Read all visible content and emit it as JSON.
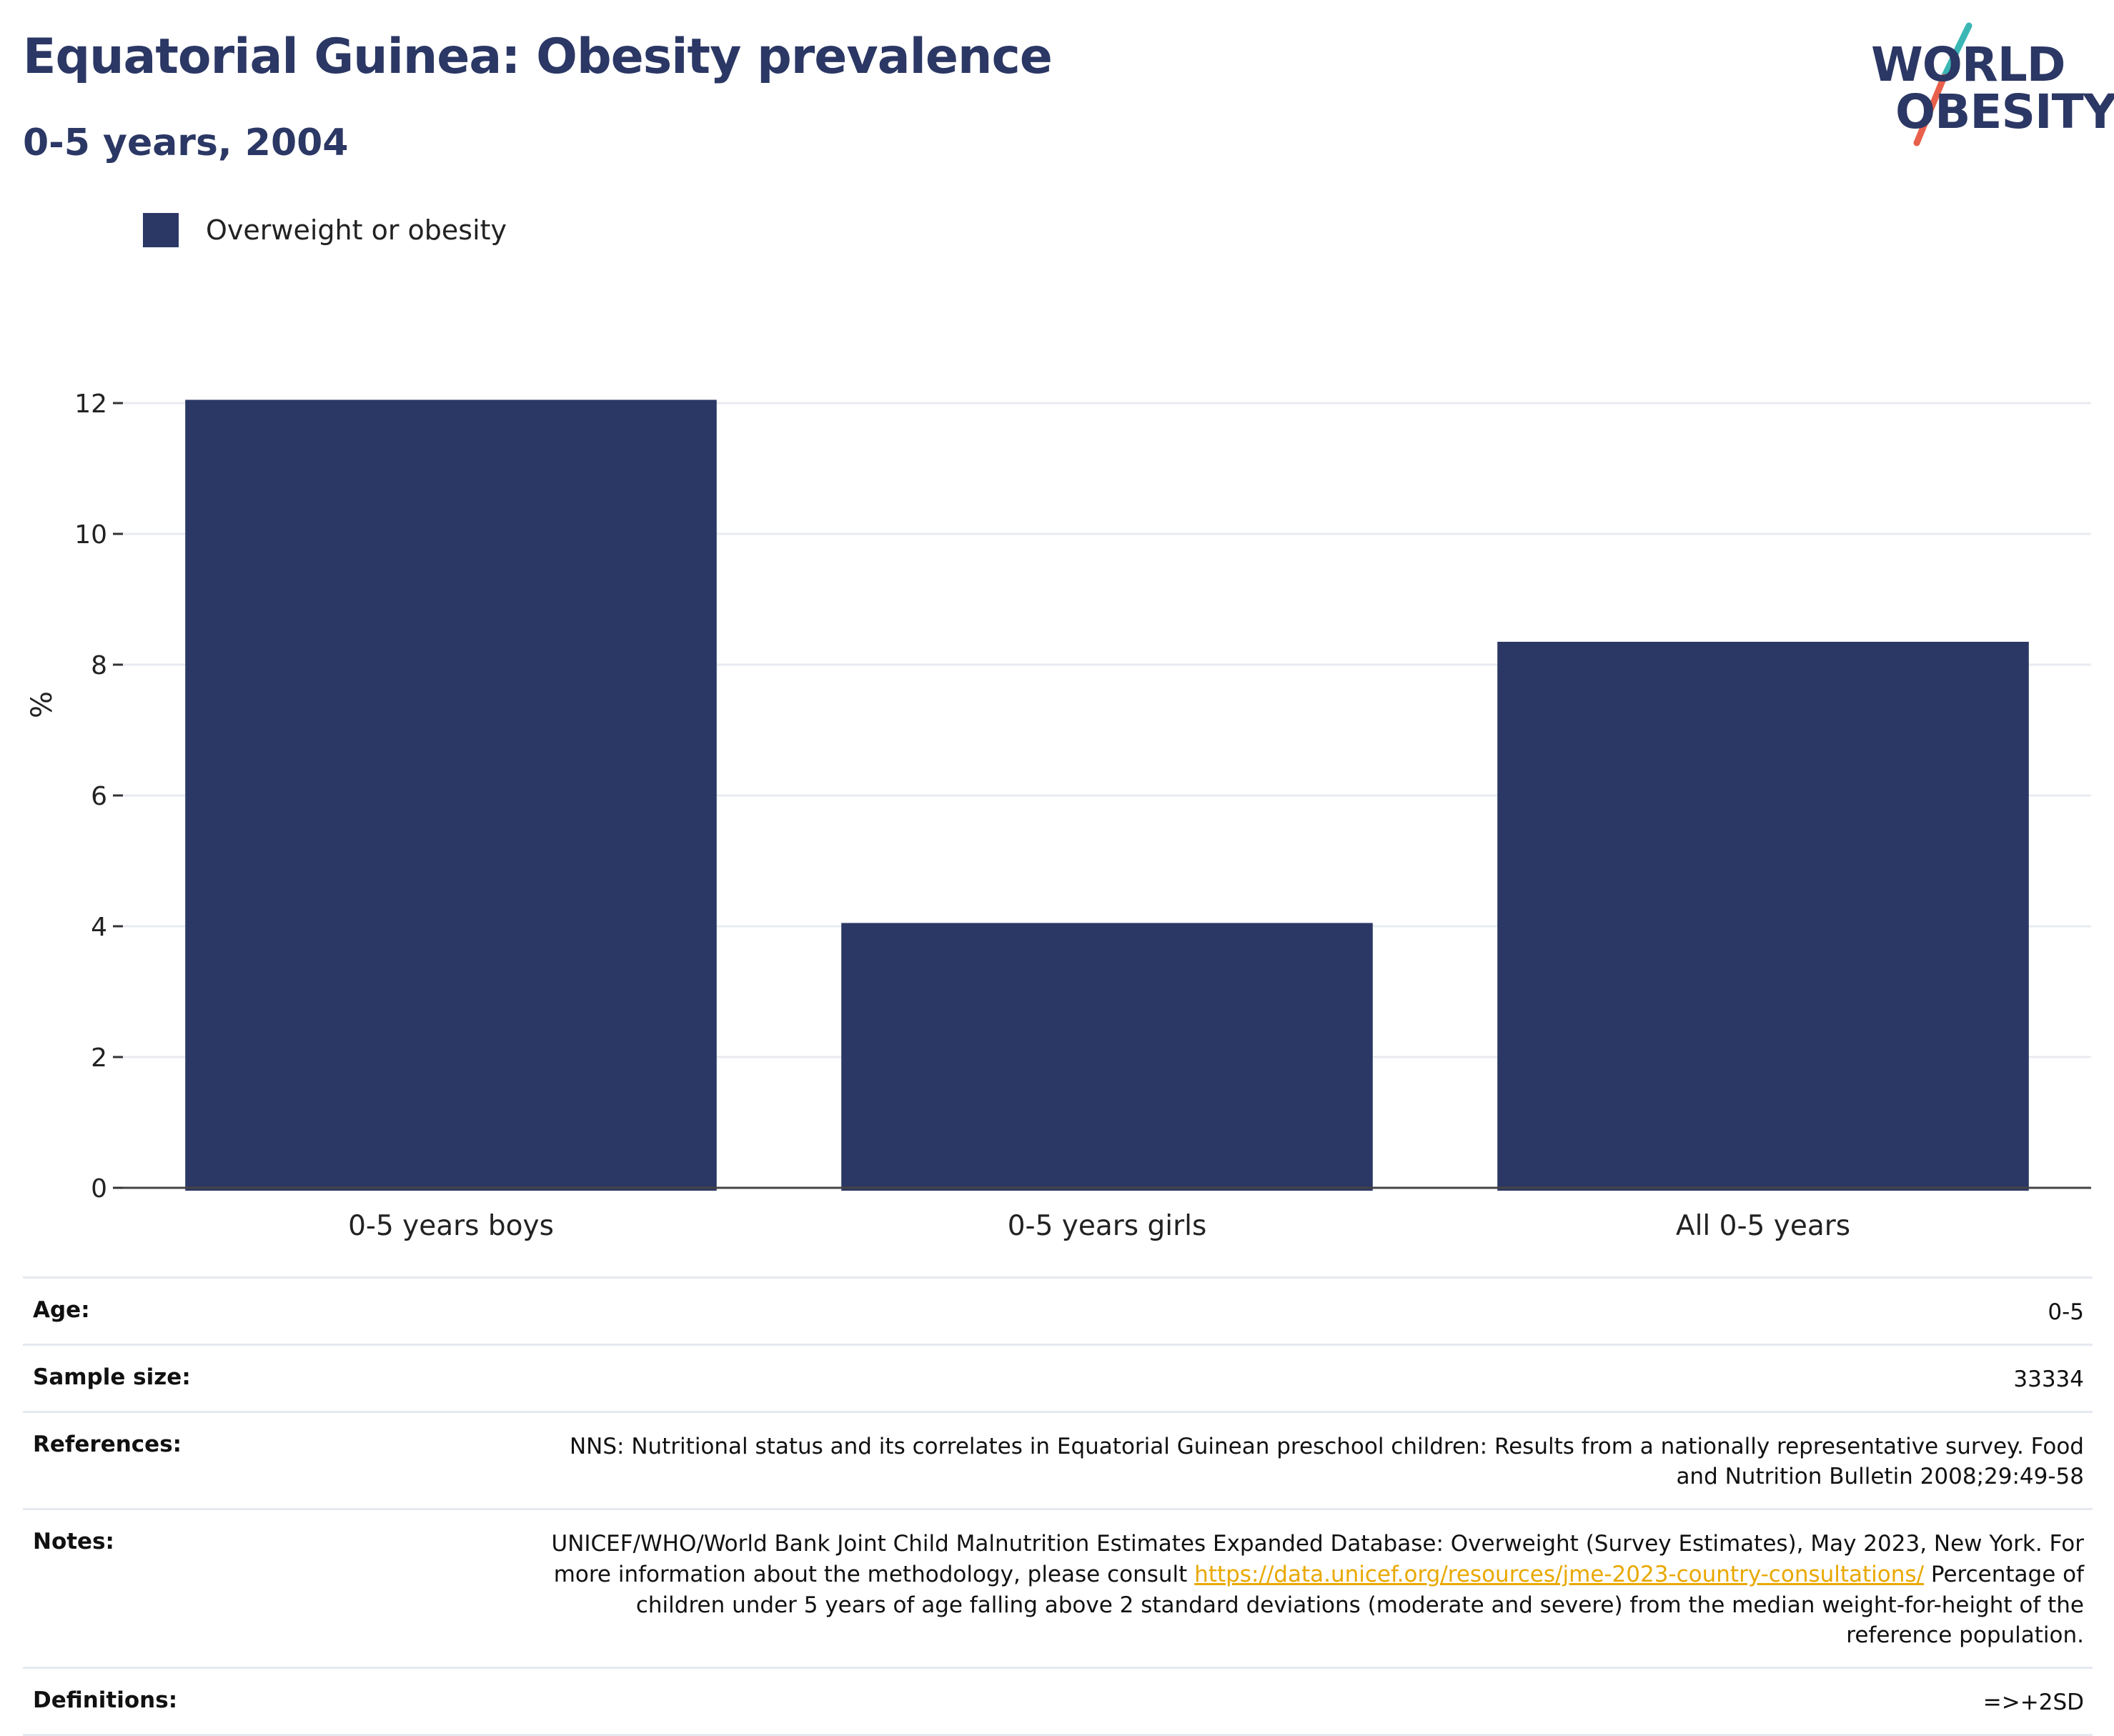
{
  "header": {
    "title": "Equatorial Guinea: Obesity prevalence",
    "subtitle": "0-5 years, 2004"
  },
  "logo": {
    "line1": "WORLD",
    "line2": "OBESITY",
    "accent_colors": [
      "#3ab7b5",
      "#e8604c"
    ]
  },
  "legend": {
    "label": "Overweight or obesity",
    "color": "#2b3764"
  },
  "chart_data": {
    "type": "bar",
    "categories": [
      "0-5 years boys",
      "0-5 years girls",
      "All 0-5 years"
    ],
    "series": [
      {
        "name": "Overweight or obesity",
        "values": [
          12.05,
          4.05,
          8.35
        ],
        "color": "#2b3764"
      }
    ],
    "ylabel": "%",
    "ylim": [
      0,
      12
    ],
    "yticks": [
      0,
      2,
      4,
      6,
      8,
      10,
      12
    ],
    "grid": true,
    "legend_position": "top-left"
  },
  "meta": {
    "age": {
      "label": "Age:",
      "value": "0-5"
    },
    "sample_size": {
      "label": "Sample size:",
      "value": "33334"
    },
    "references": {
      "label": "References:",
      "value": "NNS: Nutritional status and its correlates in Equatorial Guinean preschool children: Results from a nationally representative survey. Food and Nutrition Bulletin 2008;29:49-58"
    },
    "notes": {
      "label": "Notes:",
      "text_before": "UNICEF/WHO/World Bank Joint Child Malnutrition Estimates Expanded Database: Overweight (Survey Estimates), May 2023, New York. For more information about the methodology, please consult ",
      "link": "https://data.unicef.org/resources/jme-2023-country-consultations/",
      "text_after": " Percentage of children under 5 years of age falling above 2 standard deviations (moderate and severe) from the median weight-for-height of the reference population."
    },
    "definitions": {
      "label": "Definitions:",
      "value": "=>+2SD"
    }
  }
}
